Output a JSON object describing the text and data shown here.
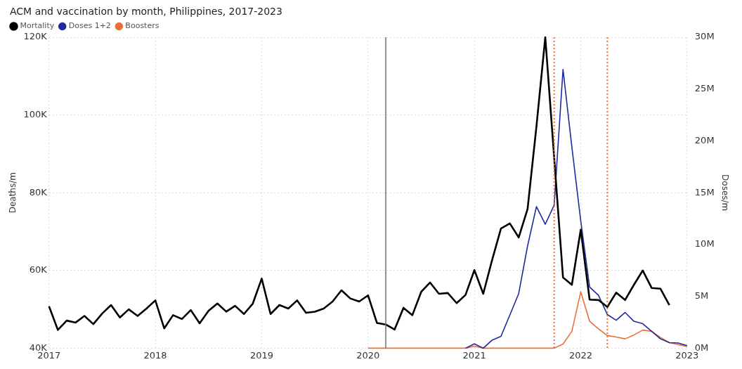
{
  "chart_data": {
    "type": "line",
    "title": "ACM and vaccination by month, Philippines, 2017-2023",
    "x": [
      "2017-01",
      "2017-02",
      "2017-03",
      "2017-04",
      "2017-05",
      "2017-06",
      "2017-07",
      "2017-08",
      "2017-09",
      "2017-10",
      "2017-11",
      "2017-12",
      "2018-01",
      "2018-02",
      "2018-03",
      "2018-04",
      "2018-05",
      "2018-06",
      "2018-07",
      "2018-08",
      "2018-09",
      "2018-10",
      "2018-11",
      "2018-12",
      "2019-01",
      "2019-02",
      "2019-03",
      "2019-04",
      "2019-05",
      "2019-06",
      "2019-07",
      "2019-08",
      "2019-09",
      "2019-10",
      "2019-11",
      "2019-12",
      "2020-01",
      "2020-02",
      "2020-03",
      "2020-04",
      "2020-05",
      "2020-06",
      "2020-07",
      "2020-08",
      "2020-09",
      "2020-10",
      "2020-11",
      "2020-12",
      "2021-01",
      "2021-02",
      "2021-03",
      "2021-04",
      "2021-05",
      "2021-06",
      "2021-07",
      "2021-08",
      "2021-09",
      "2021-10",
      "2021-11",
      "2021-12",
      "2022-01",
      "2022-02",
      "2022-03",
      "2022-04",
      "2022-05",
      "2022-06",
      "2022-07",
      "2022-08",
      "2022-09",
      "2022-10",
      "2022-11",
      "2022-12",
      "2023-01"
    ],
    "series": [
      {
        "name": "Mortality",
        "color": "#000000",
        "values": [
          50800,
          44700,
          47100,
          46600,
          48300,
          46200,
          48900,
          51100,
          47900,
          50000,
          48300,
          50200,
          52300,
          45100,
          48500,
          47500,
          49800,
          46400,
          49600,
          51500,
          49400,
          50900,
          48800,
          51500,
          57900,
          48800,
          51100,
          50200,
          52300,
          49100,
          49400,
          50200,
          52000,
          54900,
          52800,
          52000,
          53600,
          46500,
          46100,
          44800,
          50400,
          48500,
          54500,
          56900,
          54000,
          54200,
          51600,
          53700,
          60100,
          54000,
          62700,
          70800,
          72100,
          68500,
          75800,
          97000,
          120000,
          89100,
          58200,
          56300,
          70500,
          52500,
          52400,
          50600,
          54300,
          52400,
          56300,
          60000,
          55500,
          55300,
          51100,
          null,
          null
        ]
      },
      {
        "name": "Doses 1+2",
        "color": "#1f2a9c",
        "axis": "y2",
        "values": [
          null,
          null,
          null,
          null,
          null,
          null,
          null,
          null,
          null,
          null,
          null,
          null,
          null,
          null,
          null,
          null,
          null,
          null,
          null,
          null,
          null,
          null,
          null,
          null,
          null,
          null,
          null,
          null,
          null,
          null,
          null,
          null,
          null,
          null,
          null,
          null,
          null,
          null,
          null,
          null,
          null,
          null,
          null,
          null,
          null,
          null,
          null,
          0,
          420000,
          0,
          780000,
          1150000,
          3200000,
          5270000,
          9860000,
          13660000,
          11960000,
          13800000,
          26900000,
          19400000,
          12300000,
          5900000,
          5100000,
          3250000,
          2700000,
          3450000,
          2600000,
          2360000,
          1630000,
          900000,
          540000,
          500000,
          250000
        ]
      },
      {
        "name": "Boosters",
        "color": "#e8703a",
        "axis": "y2",
        "values": [
          null,
          null,
          null,
          null,
          null,
          null,
          null,
          null,
          null,
          null,
          null,
          null,
          null,
          null,
          null,
          null,
          null,
          null,
          null,
          null,
          null,
          null,
          null,
          null,
          null,
          null,
          null,
          null,
          null,
          null,
          null,
          null,
          null,
          null,
          null,
          null,
          0,
          0,
          0,
          0,
          0,
          0,
          0,
          0,
          0,
          0,
          0,
          0,
          200000,
          0,
          0,
          0,
          0,
          0,
          0,
          0,
          0,
          0,
          400000,
          1630000,
          5430000,
          2600000,
          1870000,
          1220000,
          1080000,
          900000,
          1270000,
          1750000,
          1630000,
          1030000,
          540000,
          350000,
          170000
        ]
      }
    ],
    "ylabel": "Deaths/m",
    "y2label": "Doses/m",
    "xlim": [
      "2017-01",
      "2023-01"
    ],
    "xticks": [
      "2017",
      "2018",
      "2019",
      "2020",
      "2021",
      "2022",
      "2023"
    ],
    "ylim": [
      40000,
      120000
    ],
    "yticks": [
      {
        "value": 40000,
        "label": "40K"
      },
      {
        "value": 60000,
        "label": "60K"
      },
      {
        "value": 80000,
        "label": "80K"
      },
      {
        "value": 100000,
        "label": "100K"
      },
      {
        "value": 120000,
        "label": "120K"
      }
    ],
    "y2lim": [
      0,
      30000000
    ],
    "y2ticks": [
      {
        "value": 0,
        "label": "0M"
      },
      {
        "value": 5000000,
        "label": "5M"
      },
      {
        "value": 10000000,
        "label": "10M"
      },
      {
        "value": 15000000,
        "label": "15M"
      },
      {
        "value": 20000000,
        "label": "20M"
      },
      {
        "value": 25000000,
        "label": "25M"
      },
      {
        "value": 30000000,
        "label": "30M"
      }
    ],
    "ref_lines": [
      {
        "axis": "x",
        "value": "2020-03",
        "color": "#707070",
        "line_style": "solid"
      },
      {
        "axis": "x",
        "value": "2021-10",
        "color": "#e8703a",
        "line_style": "dotted"
      },
      {
        "axis": "x",
        "value": "2022-04",
        "color": "#e8703a",
        "line_style": "dotted"
      }
    ],
    "grid": true,
    "legend": "top left",
    "marker": "none",
    "line_style": "solid"
  }
}
